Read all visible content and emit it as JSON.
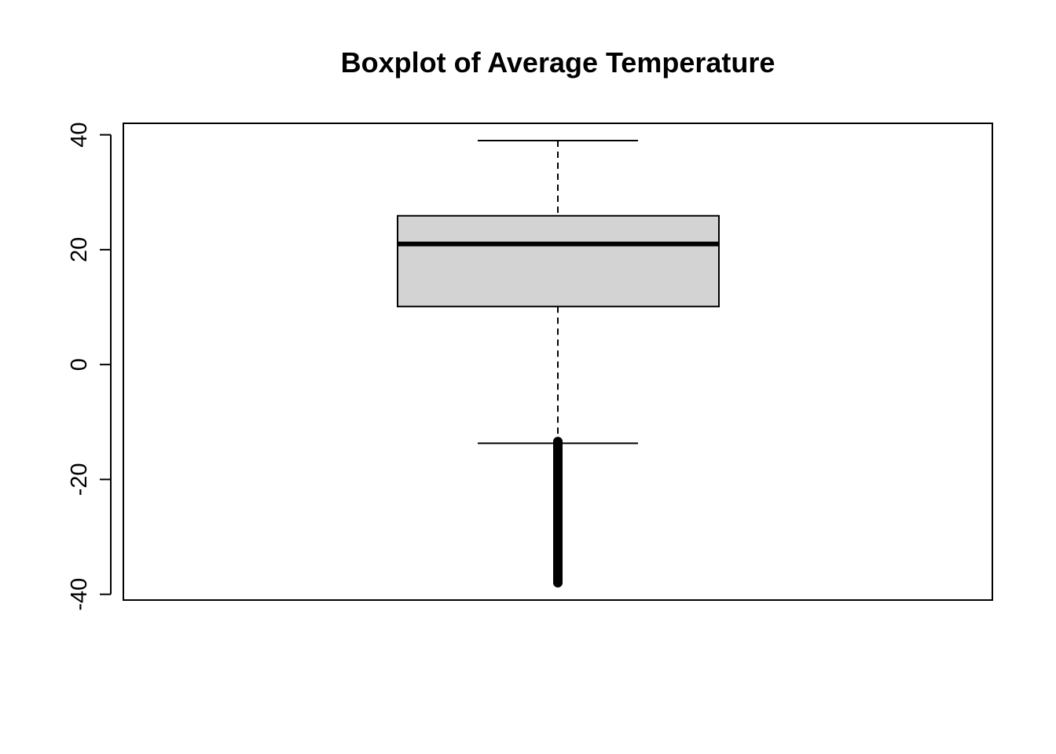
{
  "chart_data": {
    "type": "boxplot",
    "title": "Boxplot of Average Temperature",
    "xlabel": "",
    "ylabel": "",
    "ylim": [
      -41,
      42
    ],
    "yticks": [
      -40,
      -20,
      0,
      20,
      40
    ],
    "ytick_labels": [
      "-40",
      "-20",
      "0",
      "20",
      "40"
    ],
    "grid": false,
    "box": {
      "lower_whisker": -13.7,
      "q1": 10.1,
      "median": 21,
      "q3": 25.9,
      "upper_whisker": 39
    },
    "outliers": {
      "min": -38,
      "max": -13.4,
      "step": 0.1
    },
    "colors": {
      "box_fill": "#d3d3d3",
      "line": "#000000"
    }
  }
}
